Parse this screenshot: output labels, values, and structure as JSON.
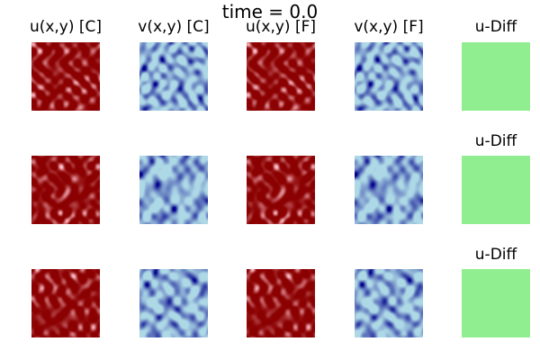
{
  "figure": {
    "title": "time = 0.0"
  },
  "column_titles": [
    "u(x,y) [C]",
    "v(x,y) [C]",
    "u(x,y) [F]",
    "v(x,y) [F]",
    "u-Diff"
  ],
  "diff_row_titles": [
    "u-Diff",
    "u-Diff"
  ],
  "colors": {
    "u_dark": "#8b0000",
    "u_light": "#ffc0cb",
    "v_dark": "#00008b",
    "v_light": "#add8e6",
    "diff": "#90ee90"
  },
  "panels": [
    {
      "row": 0,
      "field": "u",
      "type": "C",
      "seed": 11
    },
    {
      "row": 0,
      "field": "v",
      "type": "C",
      "seed": 12
    },
    {
      "row": 0,
      "field": "u",
      "type": "F",
      "seed": 11
    },
    {
      "row": 0,
      "field": "v",
      "type": "F",
      "seed": 12
    },
    {
      "row": 1,
      "field": "u",
      "type": "C",
      "seed": 21
    },
    {
      "row": 1,
      "field": "v",
      "type": "C",
      "seed": 22
    },
    {
      "row": 1,
      "field": "u",
      "type": "F",
      "seed": 21
    },
    {
      "row": 1,
      "field": "v",
      "type": "F",
      "seed": 22
    },
    {
      "row": 2,
      "field": "u",
      "type": "C",
      "seed": 31
    },
    {
      "row": 2,
      "field": "v",
      "type": "C",
      "seed": 32
    },
    {
      "row": 2,
      "field": "u",
      "type": "F",
      "seed": 31
    },
    {
      "row": 2,
      "field": "v",
      "type": "F",
      "seed": 32
    }
  ]
}
